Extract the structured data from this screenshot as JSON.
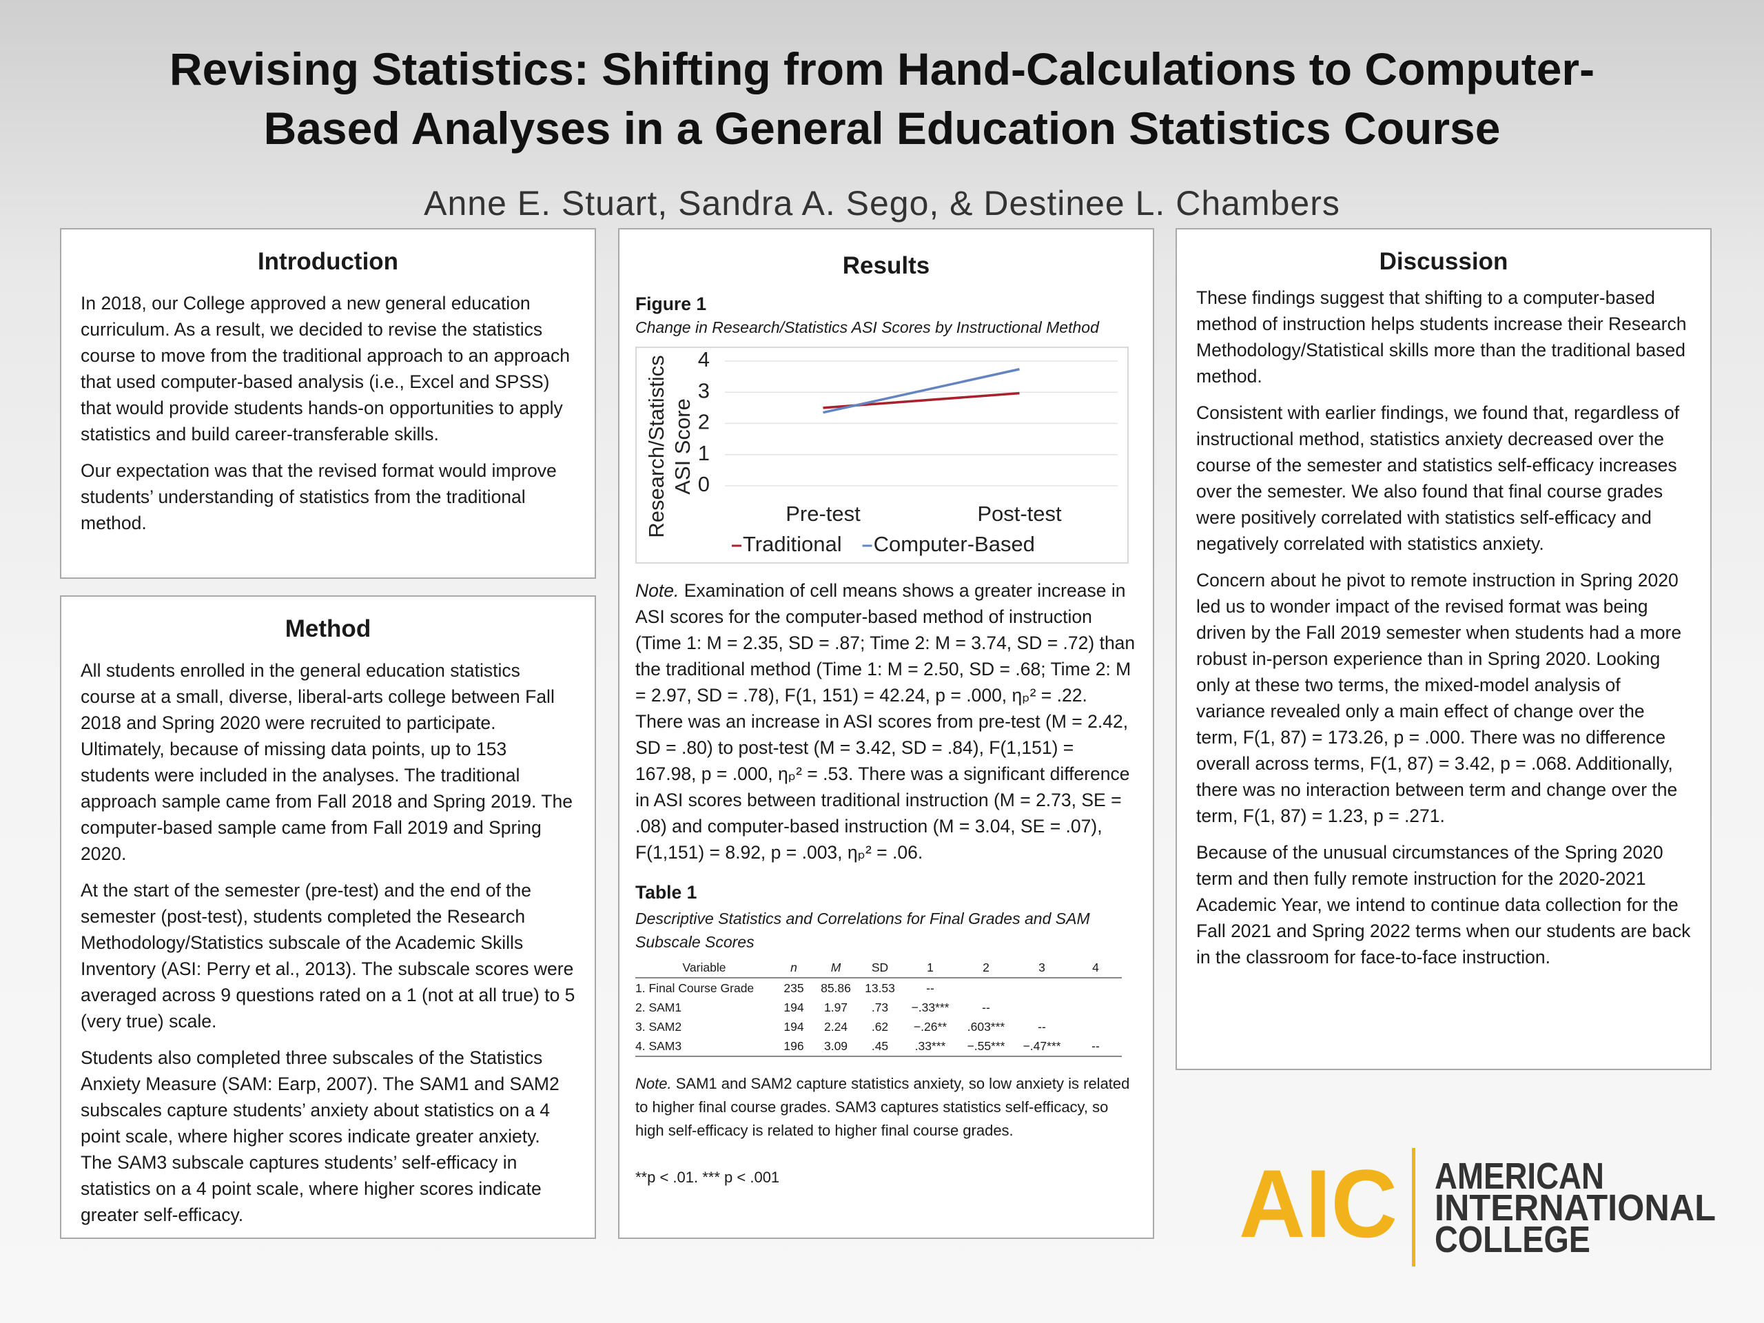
{
  "header": {
    "title": [
      "Revising Statistics: Shifting from Hand-Calculations to Computer-",
      "Based Analyses in a General Education Statistics Course"
    ],
    "authors": "Anne E. Stuart, Sandra A. Sego, & Destinee L. Chambers"
  },
  "introduction": {
    "heading": "Introduction",
    "paragraphs": [
      "In 2018, our College approved a new general education curriculum. As a result, we decided to revise the statistics course to move from the traditional approach to an approach that used computer-based analysis (i.e., Excel and SPSS) that would provide students hands-on opportunities to apply statistics and build career-transferable skills.",
      "Our expectation was that the revised format would improve students’ understanding of statistics from the traditional method."
    ]
  },
  "method": {
    "heading": "Method",
    "paragraphs": [
      "All students enrolled in the general education statistics course at a small, diverse, liberal-arts college between Fall 2018 and Spring 2020 were recruited to participate. Ultimately, because of missing data points, up to 153 students were included in the analyses. The traditional approach sample came from Fall 2018 and Spring 2019. The computer-based sample came from Fall 2019 and Spring 2020.",
      "At the start of the semester (pre-test) and the end of the semester (post-test), students completed the Research Methodology/Statistics subscale of the Academic Skills Inventory (ASI: Perry et al., 2013). The subscale scores were averaged across 9 questions rated on a 1 (not at all true) to 5 (very true) scale.",
      "Students also completed three subscales of the Statistics Anxiety Measure (SAM: Earp, 2007). The SAM1 and SAM2 subscales capture students’ anxiety about statistics on a 4 point scale, where higher scores indicate greater anxiety. The SAM3 subscale captures students’ self-efficacy in statistics on a 4 point scale, where higher scores indicate greater self-efficacy."
    ]
  },
  "results": {
    "heading": "Results",
    "figure_label": "Figure 1",
    "figure_caption": "Change in Research/Statistics ASI Scores by Instructional Method",
    "note_label": "Note.",
    "note_text": "Examination of cell means shows a greater increase in ASI scores for the computer-based method of instruction (Time 1: M = 2.35, SD = .87; Time 2: M = 3.74, SD = .72) than the traditional method (Time 1: M = 2.50, SD = .68; Time 2: M = 2.97, SD = .78), F(1, 151) = 42.24, p = .000, ηₚ² = .22. There was an increase in ASI scores from pre-test (M = 2.42, SD = .80) to post-test (M = 3.42, SD = .84), F(1,151) = 167.98, p = .000, ηₚ² = .53. There was a significant difference in ASI scores between traditional instruction (M = 2.73, SE = .08) and computer-based instruction (M = 3.04, SE = .07), F(1,151) = 8.92, p = .003, ηₚ² = .06.",
    "table_label": "Table 1",
    "table_caption": "Descriptive Statistics and Correlations for Final Grades and SAM Subscale Scores",
    "table": {
      "columns": [
        "Variable",
        "n",
        "M",
        "SD",
        "1",
        "2",
        "3",
        "4"
      ],
      "rows": [
        [
          "1. Final Course Grade",
          "235",
          "85.86",
          "13.53",
          "--",
          null,
          null,
          null
        ],
        [
          "2. SAM1",
          "194",
          "1.97",
          ".73",
          "−.33***",
          "--",
          null,
          null
        ],
        [
          "3. SAM2",
          "194",
          "2.24",
          ".62",
          "−.26**",
          ".603***",
          "--",
          null
        ],
        [
          "4. SAM3",
          "196",
          "3.09",
          ".45",
          ".33***",
          "−.55***",
          "−.47***",
          "--"
        ]
      ]
    },
    "table_note_label": "Note.",
    "table_note_text": "SAM1 and SAM2 capture statistics anxiety, so low anxiety is related to higher final course grades. SAM3 captures statistics self-efficacy, so high self-efficacy is related to higher final course grades.",
    "significance": "**p < .01. *** p < .001"
  },
  "discussion": {
    "heading": "Discussion",
    "paragraphs": [
      "These findings suggest that shifting to a computer-based method of instruction helps students increase their Research Methodology/Statistical skills more than the traditional based method.",
      "Consistent with earlier findings, we found that, regardless of instructional method, statistics anxiety decreased over the course of the semester and statistics self-efficacy increases over the semester. We also found that final course grades were positively correlated with statistics self-efficacy and negatively correlated with statistics anxiety.",
      "Concern about he pivot to remote instruction in Spring 2020 led us to wonder impact of the revised format was being driven by the Fall 2019 semester when students had a more robust in-person experience than in Spring 2020. Looking only at these two terms, the mixed-model analysis of variance revealed only a main effect of change over the term, F(1, 87) = 173.26, p = .000. There was no difference overall across terms, F(1, 87) = 3.42, p = .068. Additionally, there was no interaction between term and change over the term, F(1, 87) = 1.23, p = .271.",
      "Because of the unusual circumstances of the Spring 2020 term and then fully remote instruction for the 2020-2021 Academic Year, we intend to continue data collection for the Fall 2021 and Spring 2022 terms when our students are back in the classroom for face-to-face instruction."
    ]
  },
  "logo": {
    "mark": "AIC",
    "name": [
      "AMERICAN",
      "INTERNATIONAL",
      "COLLEGE"
    ]
  },
  "chart_data": {
    "type": "line",
    "ylabel": [
      "Research/Statistics",
      "ASI Score"
    ],
    "categories": [
      "Pre-test",
      "Post-test"
    ],
    "series": [
      {
        "name": "Traditional",
        "color": "#a8222d",
        "values": [
          2.5,
          2.97
        ]
      },
      {
        "name": "Computer-Based",
        "color": "#6384c0",
        "values": [
          2.35,
          3.74
        ]
      }
    ],
    "ylim": [
      0,
      4
    ],
    "yticks": [
      0,
      1,
      2,
      3,
      4
    ],
    "grid": true,
    "legend": "bottom"
  }
}
